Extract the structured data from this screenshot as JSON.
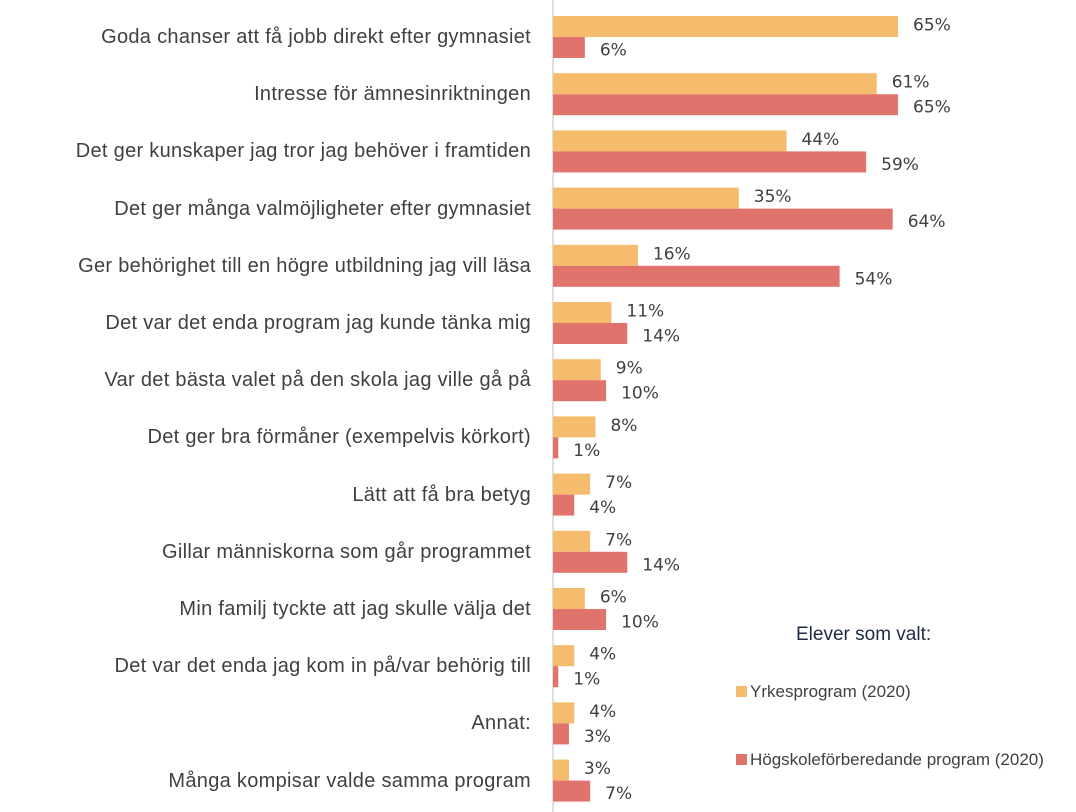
{
  "chart_data": {
    "type": "bar",
    "orientation": "horizontal",
    "categories": [
      "Goda chanser att få jobb direkt efter gymnasiet",
      "Intresse för ämnesinriktningen",
      "Det ger kunskaper jag tror jag behöver i framtiden",
      "Det ger många valmöjligheter efter gymnasiet",
      "Ger behörighet till en högre utbildning jag vill läsa",
      "Det var det enda program jag kunde tänka mig",
      "Var det bästa valet på den skola jag ville gå på",
      "Det ger bra förmåner (exempelvis körkort)",
      "Lätt att få bra betyg",
      "Gillar människorna som går programmet",
      "Min familj tyckte att jag skulle välja det",
      "Det var det enda jag kom in på/var behörig till",
      "Annat:",
      "Många kompisar valde samma program"
    ],
    "series": [
      {
        "name": "Yrkesprogram (2020)",
        "color": "#f4bc6c",
        "values": [
          65,
          61,
          44,
          35,
          16,
          11,
          9,
          8,
          7,
          7,
          6,
          4,
          4,
          3
        ],
        "value_labels": [
          "65%",
          "61%",
          "44%",
          "35%",
          "16%",
          "11%",
          "9%",
          "8%",
          "7%",
          "7%",
          "6%",
          "4%",
          "4%",
          "3%"
        ]
      },
      {
        "name": "Högskoleförberedande program (2020)",
        "color": "#e0736b",
        "values": [
          6,
          65,
          59,
          64,
          54,
          14,
          10,
          1,
          4,
          14,
          10,
          1,
          3,
          7
        ],
        "value_labels": [
          "6%",
          "65%",
          "59%",
          "64%",
          "54%",
          "14%",
          "10%",
          "1%",
          "4%",
          "14%",
          "10%",
          "1%",
          "3%",
          "7%"
        ]
      }
    ],
    "legend_title": "Elever som valt:",
    "legend": "bottom-right"
  }
}
